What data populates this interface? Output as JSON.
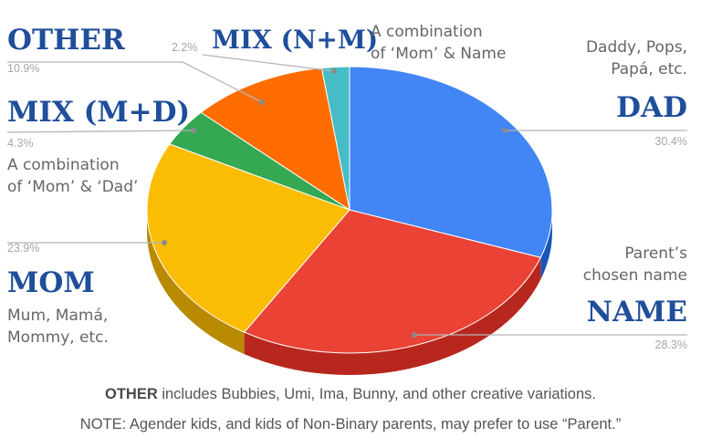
{
  "chart_data": {
    "type": "pie",
    "slices": [
      {
        "key": "dad",
        "name": "DAD",
        "value": 30.4,
        "value_label": "30.4%",
        "color": "#4285f4",
        "side": "#1a56b8",
        "description": [
          "Daddy, Pops,",
          "Papá, etc."
        ]
      },
      {
        "key": "name",
        "name": "NAME",
        "value": 28.3,
        "value_label": "28.3%",
        "color": "#ea4335",
        "side": "#b7271d",
        "description": [
          "Parent’s",
          "chosen name"
        ]
      },
      {
        "key": "mom",
        "name": "MOM",
        "value": 23.9,
        "value_label": "23.9%",
        "color": "#fbbc04",
        "side": "#b98900",
        "description": [
          "Mum, Mamá,",
          "Mommy, etc."
        ]
      },
      {
        "key": "mixmd",
        "name": "MIX (M+D)",
        "value": 4.3,
        "value_label": "4.3%",
        "color": "#34a853",
        "side": "#1f7a37",
        "description": [
          "A combination",
          "of ‘Mom’ & ‘Dad’"
        ]
      },
      {
        "key": "other",
        "name": "OTHER",
        "value": 10.9,
        "value_label": "10.9%",
        "color": "#ff6d01",
        "side": "#c24f00",
        "description": []
      },
      {
        "key": "mixnm",
        "name": "MIX (N+M)",
        "value": 2.2,
        "value_label": "2.2%",
        "color": "#46bdc6",
        "side": "#2c8a91",
        "description": [
          "A combination",
          "of ‘Mom’ & Name"
        ]
      }
    ],
    "title": "",
    "legend": "none"
  },
  "footer": {
    "line1_bold": "OTHER",
    "line1_rest": " includes Bubbies, Umi, Ima, Bunny, and other creative variations.",
    "line2": "NOTE: Agender kids, and kids of Non-Binary parents, may prefer to use “Parent.”"
  }
}
